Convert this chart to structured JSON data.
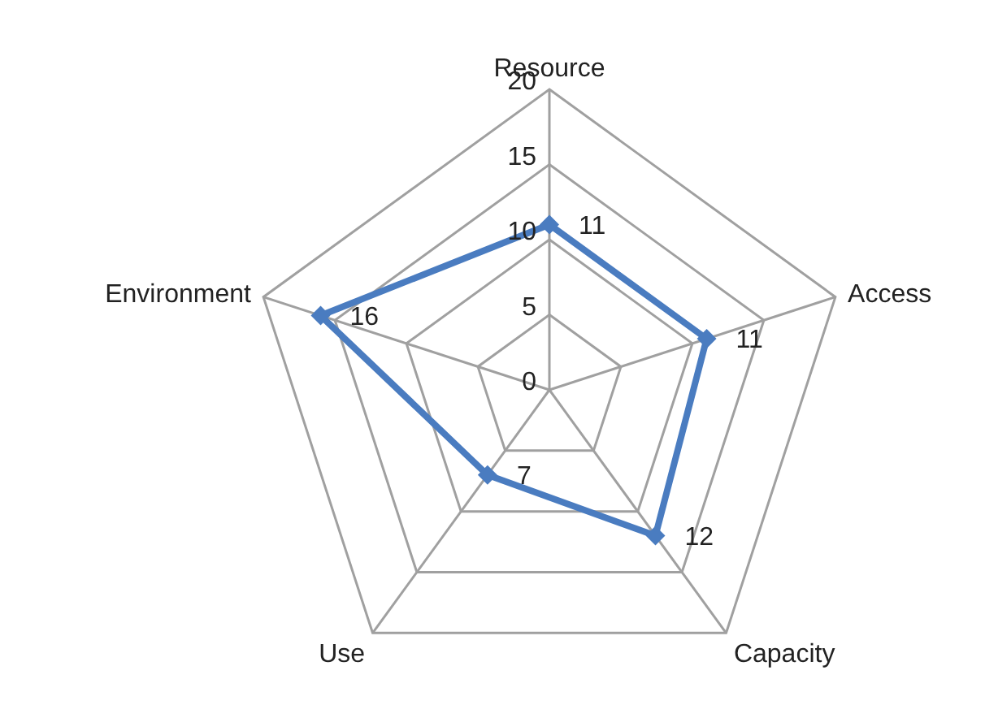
{
  "chart_data": {
    "type": "radar",
    "categories": [
      "Resource",
      "Access",
      "Capacity",
      "Use",
      "Environment"
    ],
    "series": [
      {
        "color": "#4a7cc0",
        "values": [
          11,
          11,
          12,
          7,
          16
        ]
      }
    ],
    "ylim": [
      0,
      20
    ],
    "yticks": [
      0,
      5,
      10,
      15,
      20
    ],
    "grid": true,
    "marker": "diamond",
    "data_labels": true
  }
}
